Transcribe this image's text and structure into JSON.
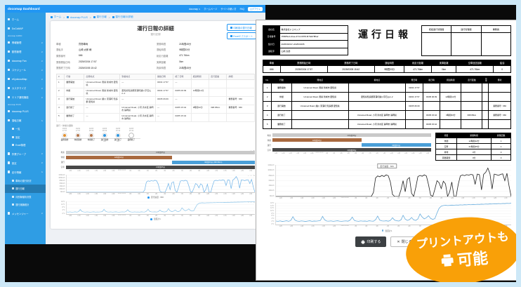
{
  "dashboard": {
    "topbar": {
      "title": "docomap Dashboard",
      "links": [
        "docomap ∨",
        "ホームページ",
        "サイトの使い方",
        "FAQ"
      ],
      "button": "ログアウト"
    },
    "sidebar": {
      "sections": [
        {
          "title": "",
          "items": [
            {
              "label": "ホーム"
            },
            {
              "label": "DoCoMAP"
            }
          ]
        },
        {
          "title": "docomap JAPAN",
          "items": [
            {
              "label": "情報管理",
              "chev": "down"
            },
            {
              "label": "動態管理",
              "chev": "down"
            },
            {
              "label": "docomap Fan",
              "chev": "down"
            },
            {
              "label": "スケジュール",
              "chev": "down"
            },
            {
              "label": "eKyokusoMap",
              "chev": "down"
            },
            {
              "label": "カスタマイズ",
              "chev": "down"
            },
            {
              "label": "エリア通知機能",
              "chev": "down"
            }
          ]
        },
        {
          "title": "docomap PLUS",
          "items": [
            {
              "label": "docomap PLUS"
            },
            {
              "label": "運転日報",
              "chev": "up",
              "children": [
                "一覧",
                "設定",
                "Excel管理"
              ],
              "active_child": -1
            },
            {
              "label": "作業グループ",
              "chev": "down"
            },
            {
              "label": "設定",
              "chev": "down"
            },
            {
              "label": "走行情報",
              "chev": "up",
              "children": [
                "車両の運行状況",
                "運行日報",
                "月別稼働状況表",
                "運行実績統計"
              ],
              "active_child": 1
            },
            {
              "label": "メッセンジャー",
              "chev": "down"
            }
          ]
        }
      ]
    },
    "breadcrumb": [
      "ホーム",
      "docomap PLUS",
      "運行日報",
      "運行日報の詳細"
    ],
    "card": {
      "title": "運行日報の詳細",
      "subtitle": "運行記録",
      "buttons": [
        "印刷用の運行日報",
        "Excelエクスポート"
      ],
      "details_left": [
        {
          "label": "車種",
          "value": "貨物車両"
        },
        {
          "label": "運転手",
          "value": "山崎 太郎 様"
        },
        {
          "label": "乗務番号",
          "value": "666"
        },
        {
          "label": "業務開始日時",
          "value": "2025/03/04 17:57"
        },
        {
          "label": "業務終了日時",
          "value": "2025/03/05 15:42"
        }
      ],
      "details_right": [
        {
          "label": "業務時間",
          "value": "21時間45分"
        },
        {
          "label": "運転時間",
          "value": "9時間33分"
        },
        {
          "label": "総走行距離",
          "value": "471.76km"
        },
        {
          "label": "実車距離",
          "value": "0km"
        },
        {
          "label": "拘束時間",
          "value": "21時間45分"
        }
      ],
      "table": {
        "headers": [
          "#",
          "行動",
          "出発地点",
          "到着地点",
          "開始日時",
          "終了日時",
          "経過時間",
          "走行距離",
          "詳細"
        ],
        "rows": [
          [
            "1",
            "業務開始",
            "Unnamed Road, 豊栄 新城市 愛知県",
            "—",
            "03/04 17:57",
            "—",
            "",
            "",
            ""
          ],
          [
            "2",
            "休憩",
            "Unnamed Road, 豊栄 新城市 愛知県",
            "愛知県知多郡東浦町緒川字石仏2−2",
            "03/04 17:57",
            "03/05 06:09",
            "12時間12分",
            "",
            ""
          ],
          [
            "3",
            "運行開始",
            "Unnamed Road, 緒川 東浦町 知多郡 愛知県",
            "—",
            "03/05 06:09",
            "—",
            "",
            "",
            "乗務番号 : 666"
          ],
          [
            "4",
            "運行終了",
            "—",
            "Unnamed Road, 小河 清水区 静岡市 静岡県",
            "—",
            "03/05 15:42",
            "9時間33分",
            "398.95km",
            "乗務番号 : 666"
          ],
          [
            "5",
            "業務終了",
            "—",
            "Unnamed Road, 小河 清水区 静岡市 静岡県",
            "—",
            "03/05 15:42",
            "",
            "",
            ""
          ]
        ]
      },
      "timeline_label": "運行・休憩の遷移",
      "timeline": [
        {
          "date": "03/04",
          "time": "17:57",
          "label": "業務開始",
          "color": "#e2902f",
          "sub": ""
        },
        {
          "date": "03/04",
          "time": "17:57",
          "label": "休憩開始",
          "color": "#b5764a",
          "sub": ""
        },
        {
          "date": "03/05",
          "time": "06:09",
          "label": "休憩終了",
          "color": "#b5764a",
          "sub": ""
        },
        {
          "date": "03/05",
          "time": "06:09",
          "label": "運行開始",
          "color": "#2f97e0",
          "sub": "666"
        },
        {
          "date": "03/05",
          "time": "15:42",
          "label": "運行終了",
          "color": "#2f97e0",
          "sub": "666"
        },
        {
          "date": "03/05",
          "time": "15:42",
          "label": "業務終了",
          "color": "#ffffff",
          "sub": ""
        }
      ]
    }
  },
  "report": {
    "title": "運行日報",
    "info_rows": [
      {
        "label": "会社名",
        "value": "株式会社ドコマップ"
      },
      {
        "label": "日報番号",
        "value": "1582f5e4-2cae-47c4-b878-f07fa97f8bef"
      },
      {
        "label": "集計日",
        "value": "2025/03/04～2025/03/05"
      },
      {
        "label": "運転手",
        "value": "山崎 太郎"
      }
    ],
    "stamp_headers": [
      "統括運行管理者",
      "運行管理者",
      "乗務員"
    ],
    "summary": {
      "headers": [
        "車番",
        "業務開始日時",
        "業務終了日時",
        "運転時間",
        "総走行距離",
        "実車距離",
        "空車回送距離",
        "給油"
      ],
      "row": [
        "666",
        "2025/03/04 17:57",
        "2025/03/05 15:42",
        "9時間33分",
        "471.76km",
        "0km",
        "471.76km",
        "0"
      ]
    },
    "events": {
      "headers": [
        "No.",
        "行動",
        "発地点",
        "着地点",
        "発日時",
        "着日時",
        "経過時間",
        "走行距離",
        "荷量",
        "備考"
      ],
      "rows": [
        [
          "1",
          "業務開始",
          "Unnamed Road, 豊栄 新城市 愛知県",
          "",
          "03/04 17:57",
          "",
          "",
          "",
          "",
          ""
        ],
        [
          "2",
          "休憩",
          "Unnamed Road, 豊栄 新城市 愛知県",
          "愛知県知多郡東浦町緒川字石仏2−2",
          "03/04 17:57",
          "03/05 06:09",
          "12時間12分",
          "",
          "",
          ""
        ],
        [
          "3",
          "運行開始",
          "Unnamed Road, 緒川 東浦町 知多郡 愛知県",
          "",
          "03/05 06:09",
          "",
          "",
          "",
          "",
          "乗務番号 : 666"
        ],
        [
          "4",
          "運行終了",
          "",
          "Unnamed Road, 小河 清水区 静岡市 静岡県",
          "",
          "03/05 15:42",
          "9時間33分",
          "398.95km",
          "",
          "乗務番号 : 666"
        ],
        [
          "5",
          "業務終了",
          "",
          "Unnamed Road, 小河 清水区 静岡市 静岡県",
          "",
          "03/05 15:42",
          "",
          "",
          "",
          ""
        ]
      ]
    },
    "side_table": {
      "headers": [
        "項目",
        "累積時間",
        "累積回数"
      ],
      "rows": [
        [
          "休憩",
          "12時間12分",
          "1"
        ],
        [
          "空車",
          "21時間45分",
          "1"
        ],
        [
          "荷待",
          "0分",
          "0"
        ],
        [
          "荷積荷卸",
          "0分",
          "0"
        ]
      ]
    },
    "print_button": "印刷する",
    "close_button": "閉じる"
  },
  "badge": {
    "line1": "プリントアウトも",
    "line2": "可能",
    "color": "#f9a008"
  },
  "charts": {
    "x_ticks": [
      "18時",
      "19時",
      "20時",
      "21時",
      "22時",
      "23時",
      "03/05 00:00",
      "1時",
      "2時",
      "3時",
      "4時",
      "5時",
      "6時",
      "7時",
      "8時",
      "9時",
      "10時",
      "11時",
      "12時",
      "13時",
      "14時",
      "15時"
    ],
    "gantt_rows": [
      {
        "label": "拘束",
        "color": "#c9c9c9",
        "text_color": "#444",
        "start": 0,
        "end": 1,
        "text": "21時間45分"
      },
      {
        "label": "休憩",
        "color": "#a8693f",
        "text_color": "#ffffff",
        "start": 0,
        "end": 0.56,
        "text": "12時間12分"
      },
      {
        "label": "運行",
        "color": "#4a9fd8",
        "text_color": "#ffffff",
        "start": 0.56,
        "end": 1,
        "text": "9時間33分",
        "text_dash": "9時間33分 (398.95km)"
      },
      {
        "label": "空車",
        "color": "#474747",
        "text_color": "#ffffff",
        "start": 0,
        "end": 1,
        "text": "21時間45分"
      }
    ],
    "speed_yticks": [
      "120km/h",
      "100km/h",
      "80km/h",
      "60km/h",
      "40km/h",
      "20km/h",
      "0km/h"
    ],
    "speed_ymax": 120,
    "speed_legend": "走行速度 : 666",
    "speed_values": [
      0,
      0,
      0,
      0,
      0,
      0,
      0,
      0,
      0,
      0,
      0,
      0,
      0,
      0,
      0,
      0,
      0,
      0,
      0,
      0,
      0,
      0,
      0,
      0,
      0,
      0,
      0,
      0,
      0,
      0,
      0,
      0,
      0,
      0,
      0,
      0,
      0,
      0,
      0,
      0,
      0,
      0,
      0,
      0,
      0,
      0,
      15,
      70,
      78,
      75,
      80,
      76,
      82,
      79,
      55,
      8,
      0,
      0,
      0,
      25,
      60,
      18,
      65,
      72,
      12,
      0,
      35,
      76,
      80,
      77,
      82,
      78,
      45,
      5,
      0,
      28,
      60,
      52,
      30,
      58,
      48,
      0,
      18,
      55,
      0,
      0,
      45,
      78,
      82,
      79,
      83,
      81,
      84,
      82,
      46,
      85,
      83,
      25,
      84,
      92,
      108,
      86,
      28,
      85,
      83,
      80,
      84,
      86,
      60,
      88,
      40,
      0
    ],
    "temp_yticks": [
      "16℃",
      "14℃",
      "12℃",
      "10℃",
      "8℃",
      "6℃",
      "4℃",
      "2℃",
      "0℃"
    ],
    "temp_ymax": 16,
    "temp_legend": "温度計1",
    "temp_values": [
      2.6,
      2.4,
      2.7,
      2.3,
      2.5,
      2.8,
      2.4,
      3.0,
      5.8,
      3.2,
      2.6,
      2.4,
      2.7,
      2.5,
      2.3,
      2.6,
      2.8,
      2.4,
      2.6,
      2.5,
      2.7,
      3.0,
      6.0,
      3.4,
      2.6,
      2.5,
      2.7,
      2.4,
      2.6,
      2.8,
      2.5,
      2.4,
      2.6,
      2.7,
      2.5,
      3.2,
      5.5,
      3.0,
      2.6,
      2.4,
      2.7,
      2.5,
      2.6,
      2.4,
      2.8,
      2.6,
      2.5,
      3.5,
      6.2,
      3.2,
      2.7,
      2.6,
      2.8,
      2.5,
      3.0,
      5.0,
      3.2,
      2.8,
      2.6,
      3.4,
      6.8,
      4.0,
      3.0,
      3.6,
      5.2,
      3.4,
      3.0,
      4.2,
      7.8,
      5.5,
      4.2,
      5.0,
      6.5,
      4.5,
      3.8,
      4.4,
      8.5,
      12.0,
      13.5,
      14.0,
      14.2,
      14.0,
      14.1,
      14.3,
      14.2,
      14.4,
      14.3,
      14.5,
      14.4,
      14.6,
      14.5,
      14.7,
      14.6,
      14.8,
      14.7,
      14.9,
      14.8,
      15.0,
      14.9,
      15.1,
      15.0,
      15.2,
      15.1,
      15.3,
      15.2,
      15.4,
      15.3,
      15.5,
      15.4,
      15.6,
      15.5,
      15.7
    ]
  }
}
